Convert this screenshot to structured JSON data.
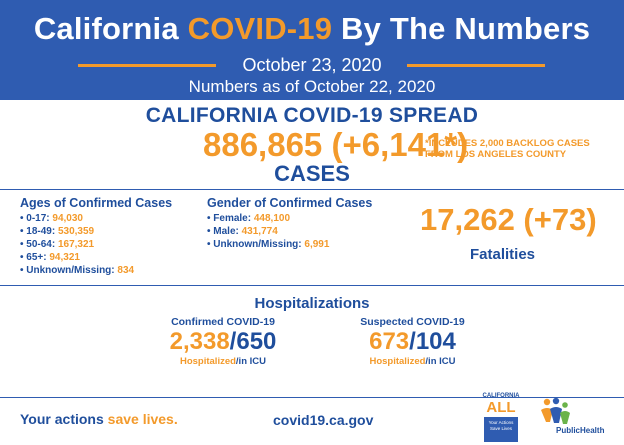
{
  "banner": {
    "title_pre": "California ",
    "title_highlight": "COVID-19",
    "title_post": " By The Numbers",
    "date": "October 23, 2020",
    "as_of": "Numbers as of October 22, 2020"
  },
  "spread": {
    "title": "CALIFORNIA COVID-19 SPREAD",
    "cases_total": "886,865 (+6,141*)",
    "note": "*INCLUDES 2,000 BACKLOG CASES FROM LOS ANGELES COUNTY",
    "cases_label": "CASES"
  },
  "ages": {
    "heading": "Ages of Confirmed Cases",
    "items": [
      {
        "label": "• 0-17: ",
        "value": "94,030"
      },
      {
        "label": "• 18-49: ",
        "value": "530,359"
      },
      {
        "label": "• 50-64: ",
        "value": "167,321"
      },
      {
        "label": "• 65+: ",
        "value": "94,321"
      },
      {
        "label": "• Unknown/Missing: ",
        "value": "834"
      }
    ]
  },
  "gender": {
    "heading": "Gender of Confirmed Cases",
    "items": [
      {
        "label": "• Female: ",
        "value": "448,100"
      },
      {
        "label": "• Male: ",
        "value": "431,774"
      },
      {
        "label": "• Unknown/Missing: ",
        "value": "6,991"
      }
    ]
  },
  "fatalities": {
    "number": "17,262 (+73)",
    "label": "Fatalities"
  },
  "hospitalizations": {
    "title": "Hospitalizations",
    "confirmed": {
      "heading": "Confirmed COVID-19",
      "hospitalized": "2,338",
      "icu": "650",
      "sub_hosp": "Hospitalized",
      "sub_icu": "/in ICU"
    },
    "suspected": {
      "heading": "Suspected COVID-19",
      "hospitalized": "673",
      "icu": "104",
      "sub_hosp": "Hospitalized",
      "sub_icu": "/in ICU"
    }
  },
  "footer": {
    "slogan_pre": "Your actions ",
    "slogan_highlight": "save lives.",
    "url": "covid19.ca.gov",
    "ca_all_top": "CALIFORNIA",
    "ca_all_word": "ALL",
    "ca_all_box": "Your Actions Save Lives",
    "public_health": "PublicHealth"
  },
  "colors": {
    "banner_blue": "#2f5cb1",
    "accent_orange": "#f39a2b",
    "text_blue": "#1f4e9c"
  }
}
